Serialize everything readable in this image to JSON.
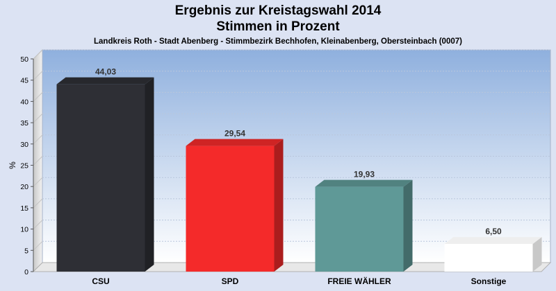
{
  "chart_data": {
    "type": "bar",
    "title_lines": [
      "Ergebnis zur Kreistagswahl 2014",
      "Stimmen in Prozent"
    ],
    "subtitle": "Landkreis Roth - Stadt Abenberg - Stimmbezirk Bechhofen, Kleinabenberg, Obersteinbach (0007)",
    "ylabel": "%",
    "ylim": [
      0,
      50
    ],
    "yticks": [
      0,
      5,
      10,
      15,
      20,
      25,
      30,
      35,
      40,
      45,
      50
    ],
    "grid": true,
    "categories": [
      "CSU",
      "SPD",
      "FREIE WÄHLER",
      "Sonstige"
    ],
    "values": [
      44.03,
      29.54,
      19.93,
      6.5
    ],
    "value_labels": [
      "44,03",
      "29,54",
      "19,93",
      "6,50"
    ],
    "colors": [
      "#2e2f35",
      "#f42a2a",
      "#5f9997",
      "#ffffff"
    ]
  }
}
